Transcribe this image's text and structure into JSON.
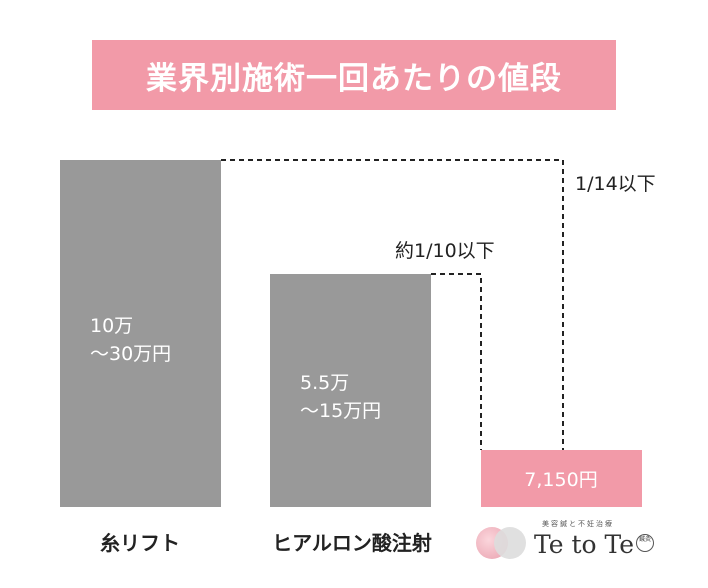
{
  "title": "業界別施術一回あたりの値段",
  "chart_data": {
    "type": "bar",
    "categories": [
      "糸リフト",
      "ヒアルロン酸注射",
      ""
    ],
    "bars": [
      {
        "category": "糸リフト",
        "value_label_lines": [
          "10万",
          "〜30万円"
        ],
        "low": 100000,
        "high": 300000,
        "color": "#999999"
      },
      {
        "category": "ヒアルロン酸注射",
        "value_label_lines": [
          "5.5万",
          "〜15万円"
        ],
        "low": 55000,
        "high": 150000,
        "color": "#999999"
      },
      {
        "category": "",
        "value_label_lines": [
          "7,150円"
        ],
        "low": 7150,
        "high": 7150,
        "color": "#f29aa8"
      }
    ],
    "annotations": [
      "1/14以下",
      "約1/10以下"
    ],
    "title": "業界別施術一回あたりの値段",
    "xlabel": "",
    "ylabel": "",
    "grid": false,
    "legend": "none"
  },
  "colors": {
    "accent": "#f29aa8",
    "bar_gray": "#999999",
    "line": "#222222"
  },
  "logo": {
    "brand": "Te to Te",
    "tagline": "美容鍼と不妊治療",
    "seal": "鍼灸",
    "icon": "two-circles-logo-icon"
  }
}
